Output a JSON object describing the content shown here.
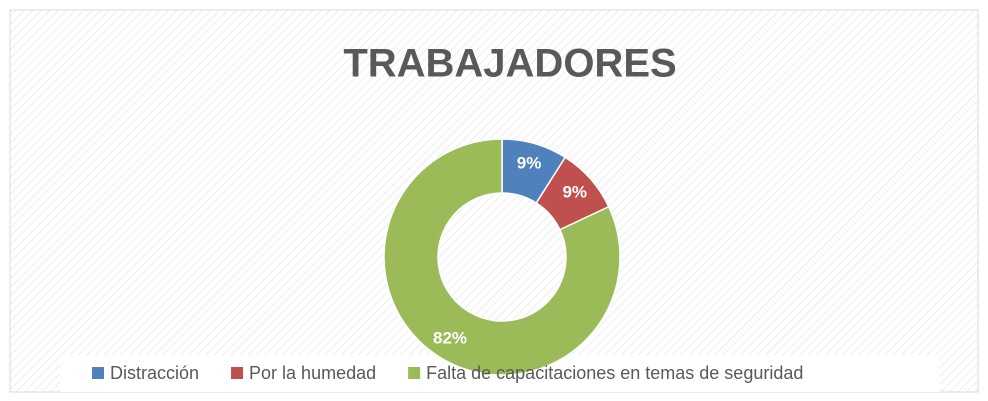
{
  "chart_data": {
    "type": "donut",
    "title": "TRABAJADORES",
    "categories": [
      "Distracción",
      "Por la humedad",
      "Falta de capacitaciones en temas de seguridad"
    ],
    "values": [
      9,
      9,
      82
    ],
    "value_labels": [
      "9%",
      "9%",
      "82%"
    ],
    "colors": [
      "#4f81bd",
      "#c0504d",
      "#9bbb59"
    ],
    "legend": "bottom"
  }
}
